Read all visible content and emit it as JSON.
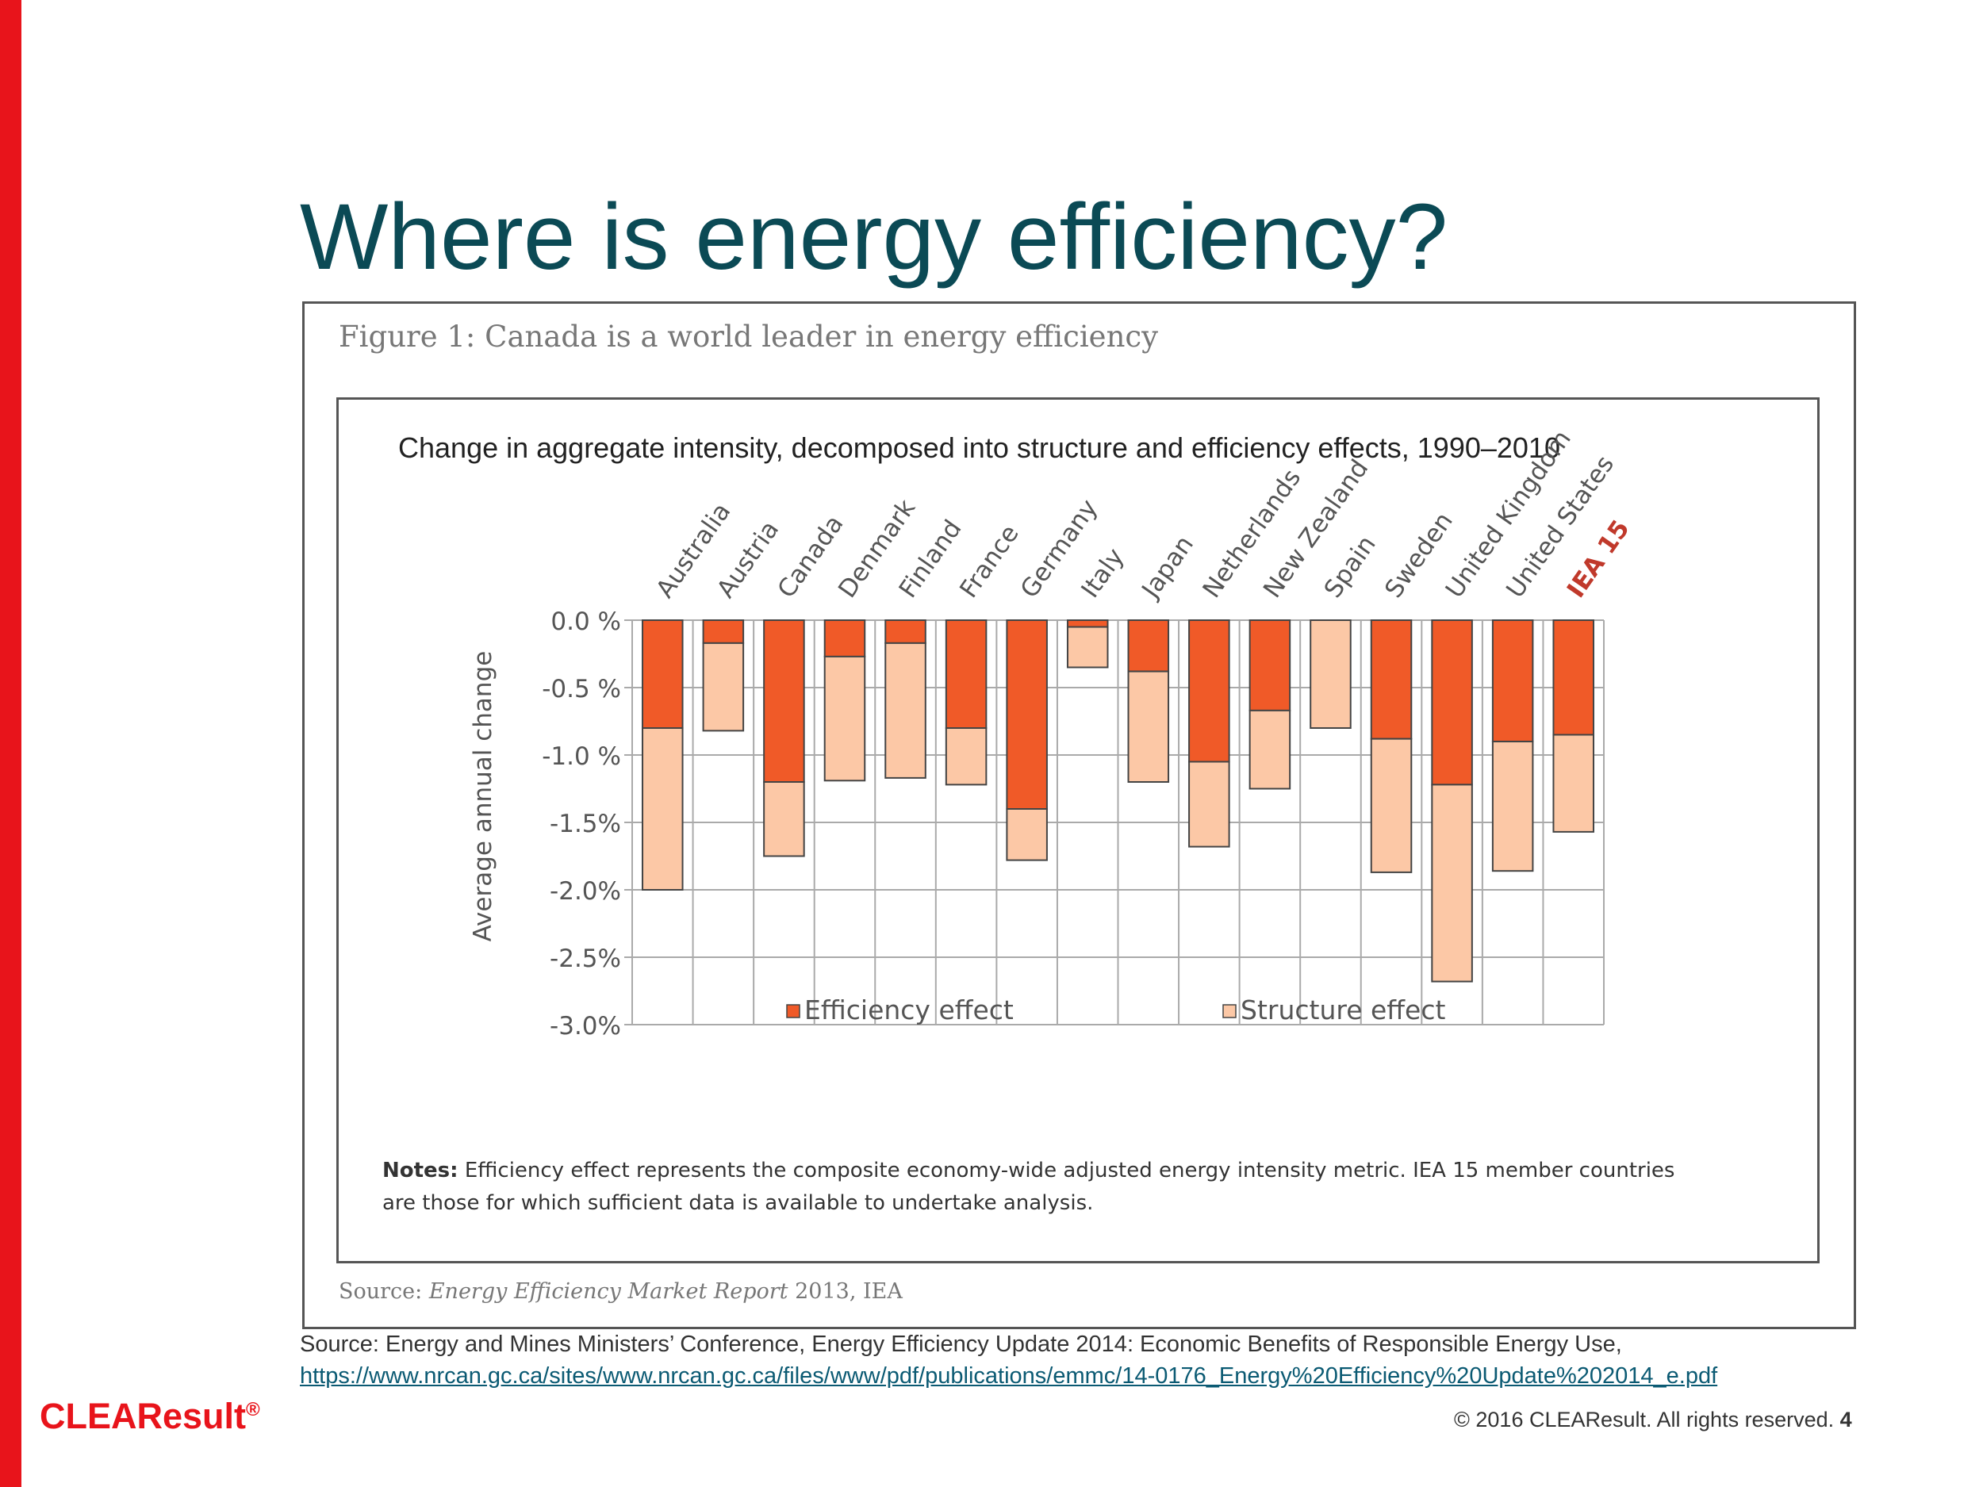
{
  "slide": {
    "title": "Where is energy efficiency?",
    "source_text": "Source: Energy and Mines Ministers’ Conference, Energy Efficiency Update 2014: Economic Benefits of Responsible Energy Use,",
    "source_link": "https://www.nrcan.gc.ca/sites/www.nrcan.gc.ca/files/www/pdf/publications/emmc/14-0176_Energy%20Efficiency%20Update%202014_e.pdf",
    "logo_text": "CLEAResult",
    "logo_mark": "®",
    "copyright": "© 2016 CLEAResult. All rights reserved.",
    "page_number": "4",
    "accent_color": "#e8141b",
    "title_color": "#0b4a55"
  },
  "figure": {
    "caption": "Figure 1: Canada is a world leader in energy efficiency",
    "notes_label": "Notes:",
    "notes_text": "Efficiency effect represents the composite economy-wide adjusted energy intensity metric. IEA 15 member countries are those for which sufficient data is available to undertake analysis.",
    "source_label": "Source:",
    "source_title": "Energy Efficiency Market Report",
    "source_rest": "2013, IEA"
  },
  "chart_data": {
    "type": "bar",
    "title": "Change in aggregate intensity, decomposed into structure and efficiency effects, 1990–2010",
    "ylabel": "Average annual change",
    "xlabel": "",
    "ylim": [
      -3.0,
      0.0
    ],
    "yticks": [
      "0.0 %",
      "-0.5 %",
      "-1.0 %",
      "-1.5%",
      "-2.0%",
      "-2.5%",
      "-3.0%"
    ],
    "ytick_values": [
      0.0,
      -0.5,
      -1.0,
      -1.5,
      -2.0,
      -2.5,
      -3.0
    ],
    "grid": true,
    "legend_position": "bottom",
    "categories": [
      "Australia",
      "Austria",
      "Canada",
      "Denmark",
      "Finland",
      "France",
      "Germany",
      "Italy",
      "Japan",
      "Netherlands",
      "New Zealand",
      "Spain",
      "Sweden",
      "United Kingdom",
      "United States",
      "IEA 15"
    ],
    "highlight_category": "IEA 15",
    "series": [
      {
        "name": "Efficiency effect",
        "color": "#f05a28",
        "values": [
          -0.8,
          -0.17,
          -1.2,
          -0.27,
          -0.17,
          -0.8,
          -1.4,
          -0.05,
          -0.38,
          -1.05,
          -0.67,
          0.0,
          -0.88,
          -1.22,
          -0.9,
          -0.85
        ]
      },
      {
        "name": "Structure effect",
        "color": "#fcc8a6",
        "values": [
          -1.2,
          -0.65,
          -0.55,
          -0.92,
          -1.0,
          -0.42,
          -0.38,
          -0.3,
          -0.82,
          -0.63,
          -0.58,
          -0.8,
          -0.99,
          -1.46,
          -0.96,
          -0.72
        ]
      }
    ]
  }
}
